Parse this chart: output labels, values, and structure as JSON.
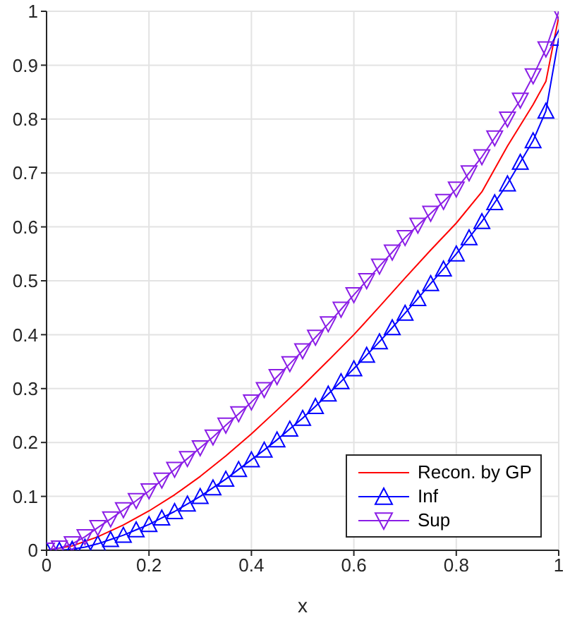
{
  "chart_data": {
    "type": "line",
    "xlabel": "x",
    "xlim": [
      0,
      1
    ],
    "ylim": [
      0,
      1
    ],
    "xticks": [
      0,
      0.2,
      0.4,
      0.6,
      0.8,
      1
    ],
    "yticks": [
      0,
      0.1,
      0.2,
      0.3,
      0.4,
      0.5,
      0.6,
      0.7,
      0.8,
      0.9,
      1
    ],
    "grid": true,
    "legend": "bottom right",
    "line_style": "solid",
    "series": [
      {
        "name": "Recon. by GP",
        "color": "#ff0000",
        "marker": "none",
        "x": [
          0,
          0.05,
          0.1,
          0.15,
          0.2,
          0.25,
          0.3,
          0.35,
          0.4,
          0.45,
          0.5,
          0.55,
          0.6,
          0.65,
          0.7,
          0.75,
          0.8,
          0.85,
          0.9,
          0.95,
          0.975,
          1
        ],
        "values": [
          0,
          0.008,
          0.025,
          0.047,
          0.073,
          0.103,
          0.137,
          0.175,
          0.216,
          0.26,
          0.305,
          0.352,
          0.4,
          0.452,
          0.505,
          0.557,
          0.607,
          0.665,
          0.75,
          0.827,
          0.87,
          0.99
        ]
      },
      {
        "name": "Inf",
        "color": "#0000ff",
        "marker": "triangle",
        "x": [
          0,
          0.025,
          0.05,
          0.075,
          0.1,
          0.125,
          0.15,
          0.175,
          0.2,
          0.225,
          0.25,
          0.275,
          0.3,
          0.325,
          0.35,
          0.375,
          0.4,
          0.425,
          0.45,
          0.475,
          0.5,
          0.525,
          0.55,
          0.575,
          0.6,
          0.625,
          0.65,
          0.675,
          0.7,
          0.725,
          0.75,
          0.775,
          0.8,
          0.825,
          0.85,
          0.875,
          0.9,
          0.925,
          0.95,
          0.975,
          1
        ],
        "values": [
          0,
          0,
          0.002,
          0.006,
          0.012,
          0.02,
          0.028,
          0.038,
          0.048,
          0.06,
          0.072,
          0.086,
          0.1,
          0.116,
          0.132,
          0.15,
          0.168,
          0.186,
          0.205,
          0.225,
          0.245,
          0.267,
          0.29,
          0.313,
          0.337,
          0.362,
          0.387,
          0.413,
          0.44,
          0.467,
          0.495,
          0.522,
          0.55,
          0.58,
          0.61,
          0.645,
          0.68,
          0.72,
          0.76,
          0.815,
          0.95
        ]
      },
      {
        "name": "Sup",
        "color": "#8b1ee6",
        "marker": "triangle-down",
        "x": [
          0,
          0.025,
          0.05,
          0.075,
          0.1,
          0.125,
          0.15,
          0.175,
          0.2,
          0.225,
          0.25,
          0.275,
          0.3,
          0.325,
          0.35,
          0.375,
          0.4,
          0.425,
          0.45,
          0.475,
          0.5,
          0.525,
          0.55,
          0.575,
          0.6,
          0.625,
          0.65,
          0.675,
          0.7,
          0.725,
          0.75,
          0.775,
          0.8,
          0.825,
          0.85,
          0.875,
          0.9,
          0.925,
          0.95,
          0.975,
          1
        ],
        "values": [
          0,
          0.004,
          0.012,
          0.025,
          0.042,
          0.058,
          0.075,
          0.092,
          0.11,
          0.13,
          0.15,
          0.17,
          0.19,
          0.21,
          0.232,
          0.253,
          0.275,
          0.298,
          0.322,
          0.346,
          0.37,
          0.395,
          0.42,
          0.447,
          0.474,
          0.5,
          0.527,
          0.553,
          0.58,
          0.603,
          0.625,
          0.647,
          0.67,
          0.7,
          0.73,
          0.765,
          0.8,
          0.835,
          0.88,
          0.93,
          1
        ]
      }
    ]
  }
}
